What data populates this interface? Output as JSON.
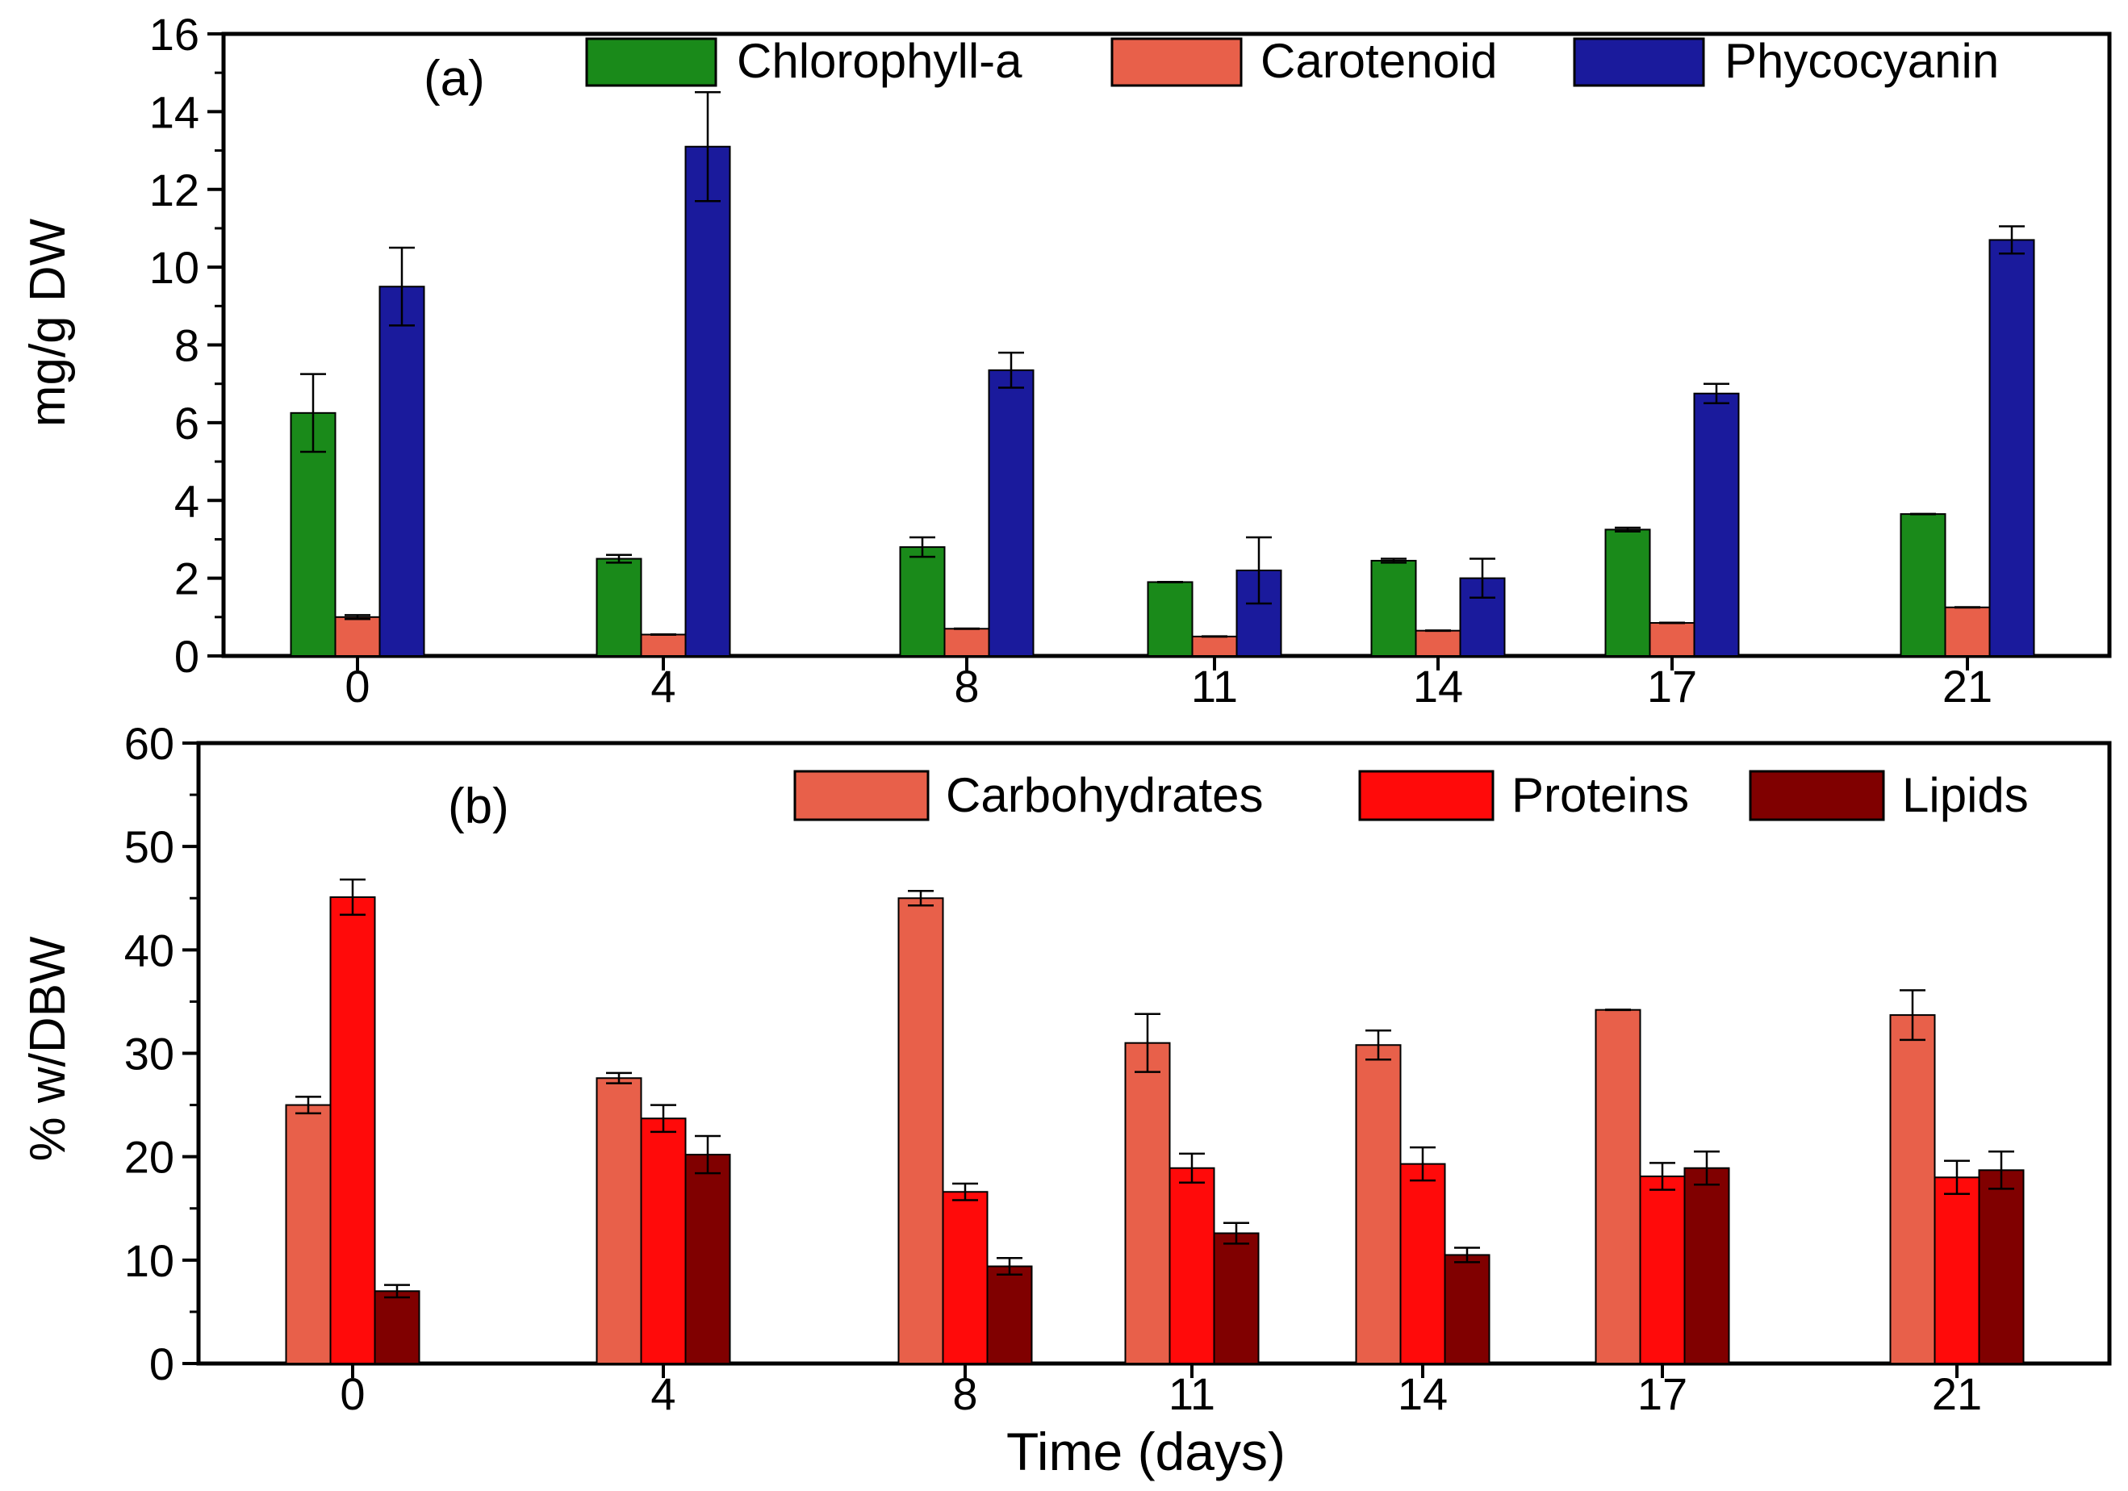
{
  "chart_data": [
    {
      "id": "a",
      "type": "bar",
      "panel_label": "(a)",
      "title": "",
      "xlabel": "",
      "ylabel": "mg/g DW",
      "ylim": [
        0,
        16
      ],
      "yticks": [
        0,
        2,
        4,
        6,
        8,
        10,
        12,
        14,
        16
      ],
      "categories": [
        "0",
        "4",
        "8",
        "11",
        "14",
        "17",
        "21"
      ],
      "x": [
        0,
        4,
        8,
        11,
        14,
        17,
        21
      ],
      "legend_position": "top",
      "series": [
        {
          "name": "Chlorophyll-a",
          "color": "#1a8a1a",
          "values": [
            6.25,
            2.5,
            2.8,
            1.9,
            2.45,
            3.25,
            3.65
          ],
          "errors": [
            1.0,
            0.1,
            0.25,
            0.0,
            0.05,
            0.05,
            0.0
          ]
        },
        {
          "name": "Carotenoid",
          "color": "#e8604a",
          "values": [
            1.0,
            0.55,
            0.7,
            0.5,
            0.65,
            0.85,
            1.25
          ],
          "errors": [
            0.05,
            0.0,
            0.0,
            0.0,
            0.0,
            0.0,
            0.0
          ]
        },
        {
          "name": "Phycocyanin",
          "color": "#1a1a9c",
          "values": [
            9.5,
            13.1,
            7.35,
            2.2,
            2.0,
            6.75,
            10.7
          ],
          "errors": [
            1.0,
            1.4,
            0.45,
            0.85,
            0.5,
            0.25,
            0.35
          ]
        }
      ]
    },
    {
      "id": "b",
      "type": "bar",
      "panel_label": "(b)",
      "title": "",
      "xlabel": "Time (days)",
      "ylabel": "% w/DBW",
      "ylim": [
        0,
        60
      ],
      "yticks": [
        0,
        10,
        20,
        30,
        40,
        50,
        60
      ],
      "categories": [
        "0",
        "4",
        "8",
        "11",
        "14",
        "17",
        "21"
      ],
      "x": [
        0,
        4,
        8,
        11,
        14,
        17,
        21
      ],
      "legend_position": "top-right",
      "series": [
        {
          "name": "Carbohydrates",
          "color": "#e8604a",
          "values": [
            25.0,
            27.6,
            45.0,
            31.0,
            30.8,
            34.2,
            33.7
          ],
          "errors": [
            0.8,
            0.5,
            0.7,
            2.8,
            1.4,
            0.0,
            2.4
          ]
        },
        {
          "name": "Proteins",
          "color": "#ff0a0a",
          "values": [
            45.1,
            23.7,
            16.6,
            18.9,
            19.3,
            18.1,
            18.0
          ],
          "errors": [
            1.7,
            1.3,
            0.8,
            1.4,
            1.6,
            1.3,
            1.6
          ]
        },
        {
          "name": "Lipids",
          "color": "#800000",
          "values": [
            7.0,
            20.2,
            9.4,
            12.6,
            10.5,
            18.9,
            18.7
          ],
          "errors": [
            0.6,
            1.8,
            0.8,
            1.0,
            0.7,
            1.6,
            1.8
          ]
        }
      ]
    }
  ]
}
